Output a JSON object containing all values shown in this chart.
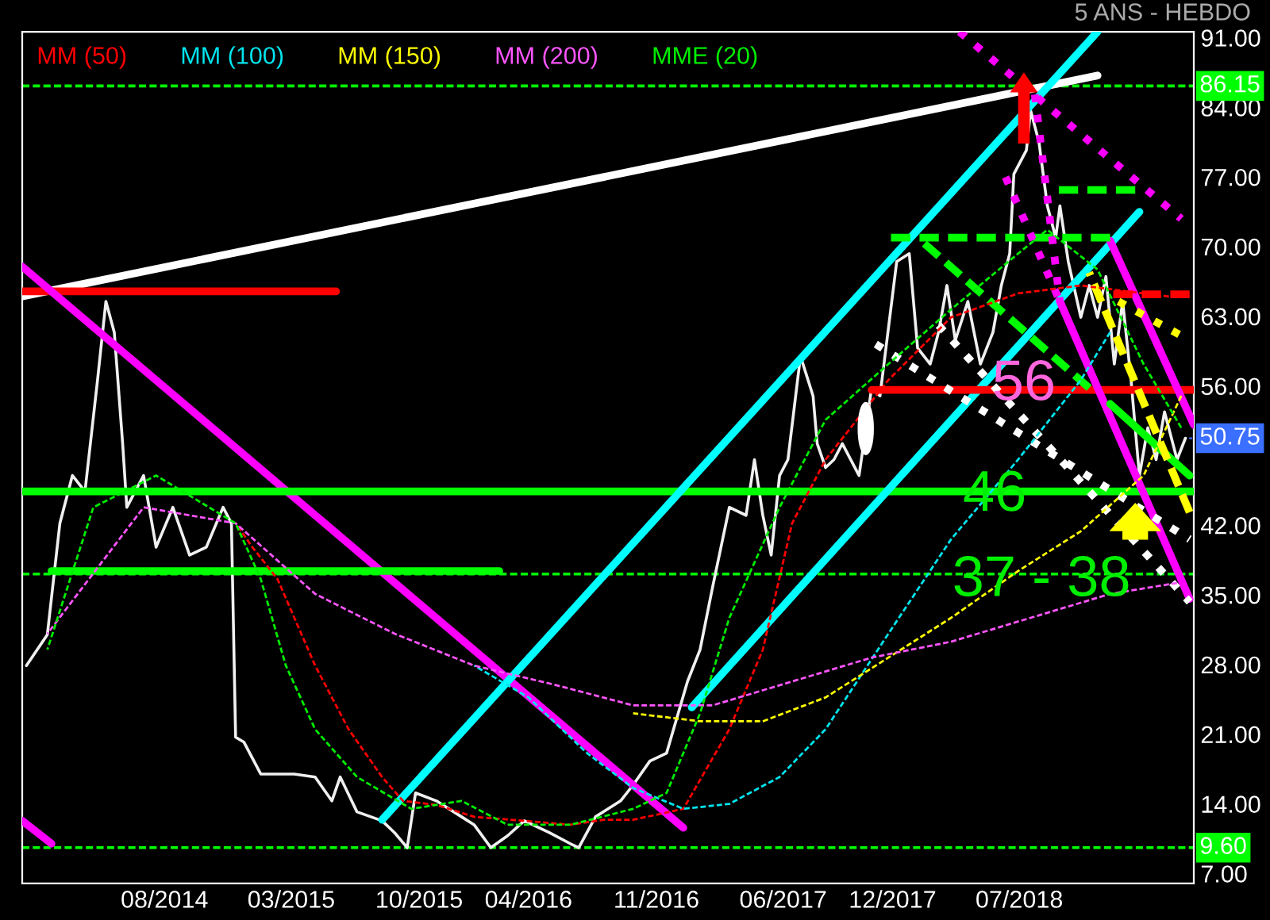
{
  "chart_data": {
    "type": "line",
    "subtitle": "5 ANS - HEBDO",
    "xlim": [
      "2013-12-06",
      "2019-04-19"
    ],
    "ylim": [
      6,
      91.6
    ],
    "xticks": [
      {
        "value": "2014-08-01",
        "label": "08/2014"
      },
      {
        "value": "2015-03-01",
        "label": "03/2015"
      },
      {
        "value": "2015-10-01",
        "label": "10/2015"
      },
      {
        "value": "2016-04-01",
        "label": "04/2016"
      },
      {
        "value": "2016-11-01",
        "label": "11/2016"
      },
      {
        "value": "2017-06-01",
        "label": "06/2017"
      },
      {
        "value": "2017-12-01",
        "label": "12/2017"
      },
      {
        "value": "2018-07-01",
        "label": "07/2018"
      }
    ],
    "yticks": [
      {
        "value": 7,
        "label": "7.00"
      },
      {
        "value": 14,
        "label": "14.00"
      },
      {
        "value": 21,
        "label": "21.00"
      },
      {
        "value": 28,
        "label": "28.00"
      },
      {
        "value": 35,
        "label": "35.00"
      },
      {
        "value": 42,
        "label": "42.00"
      },
      {
        "value": 56,
        "label": "56.00"
      },
      {
        "value": 63,
        "label": "63.00"
      },
      {
        "value": 70,
        "label": "70.00"
      },
      {
        "value": 77,
        "label": "77.00"
      },
      {
        "value": 84,
        "label": "84.00"
      },
      {
        "value": 91,
        "label": "91.00"
      }
    ],
    "grid": false,
    "legend": "top left",
    "series": [
      {
        "color": "#f0f0f0",
        "line_style": "solid",
        "x": [
          "2013-12-13",
          "2014-01-17",
          "2014-02-07",
          "2014-02-28",
          "2014-03-21",
          "2014-04-11",
          "2014-04-25",
          "2014-05-09",
          "2014-05-23",
          "2014-05-30",
          "2014-06-27",
          "2014-07-18",
          "2014-08-15",
          "2014-09-12",
          "2014-10-10",
          "2014-11-07",
          "2014-11-21",
          "2014-11-28",
          "2014-12-12",
          "2015-01-09",
          "2015-03-06",
          "2015-04-10",
          "2015-05-08",
          "2015-05-22",
          "2015-06-19",
          "2015-07-31",
          "2015-08-21",
          "2015-09-11",
          "2015-09-25",
          "2015-10-30",
          "2015-12-11",
          "2016-01-01",
          "2016-01-29",
          "2016-02-26",
          "2016-03-25",
          "2016-05-06",
          "2016-06-10",
          "2016-06-24",
          "2016-07-22",
          "2016-09-02",
          "2016-09-23",
          "2016-10-21",
          "2016-11-18",
          "2016-12-23",
          "2017-01-13",
          "2017-02-03",
          "2017-03-03",
          "2017-03-31",
          "2017-04-14",
          "2017-04-28",
          "2017-05-12",
          "2017-05-26",
          "2017-06-09",
          "2017-06-30",
          "2017-07-21",
          "2017-07-28",
          "2017-08-11",
          "2017-08-25",
          "2017-09-08",
          "2017-10-06",
          "2017-10-27",
          "2017-11-10",
          "2017-12-08",
          "2017-12-29",
          "2018-01-12",
          "2018-02-02",
          "2018-02-16",
          "2018-03-02",
          "2018-03-16",
          "2018-04-06",
          "2018-04-27",
          "2018-05-18",
          "2018-06-01",
          "2018-06-15",
          "2018-06-22",
          "2018-07-13",
          "2018-07-20",
          "2018-08-03",
          "2018-08-17",
          "2018-08-31",
          "2018-09-07",
          "2018-09-21",
          "2018-10-12",
          "2018-10-26",
          "2018-11-09",
          "2018-11-23",
          "2018-12-07",
          "2018-12-21",
          "2019-01-04",
          "2019-01-18",
          "2019-02-01",
          "2019-02-15",
          "2019-03-01",
          "2019-03-22",
          "2019-04-05"
        ],
        "values": [
          27.9,
          31,
          42.2,
          47,
          45.4,
          56.6,
          64.5,
          61.4,
          50.2,
          43.8,
          47,
          39.8,
          43.8,
          39,
          39.8,
          43.8,
          42.2,
          20.7,
          20.2,
          17,
          17,
          16.7,
          14.3,
          16.7,
          13.2,
          12.3,
          11.1,
          9.6,
          15.1,
          14.3,
          12.7,
          11.9,
          9.6,
          10.8,
          12.3,
          11.1,
          10,
          9.6,
          12.7,
          14.3,
          15.9,
          18.3,
          19.1,
          26.3,
          29.5,
          35.8,
          43.8,
          43,
          48.6,
          43,
          39,
          47,
          48.6,
          59,
          55,
          50.2,
          47.8,
          48.6,
          50.2,
          47,
          55.8,
          55,
          68.5,
          69.3,
          59.8,
          58.2,
          61.4,
          66.1,
          60.6,
          64.5,
          58.2,
          61.4,
          66.1,
          69.3,
          77.3,
          79.7,
          83.7,
          80.5,
          74.1,
          70.9,
          74.1,
          68.5,
          62.9,
          66.1,
          62.9,
          67,
          58.2,
          64.5,
          56.6,
          47,
          51.8,
          48.6,
          53.4,
          48.6,
          50.75
        ]
      },
      {
        "name": "MM (50)",
        "color": "#ff0000",
        "line_style": "dashed",
        "x": [
          "2014-11-28",
          "2014-12-26",
          "2015-02-06",
          "2015-04-10",
          "2015-06-05",
          "2015-07-31",
          "2015-09-04",
          "2015-10-30",
          "2016-01-01",
          "2016-03-25",
          "2016-06-10",
          "2016-08-05",
          "2016-09-23",
          "2016-12-16",
          "2017-03-03",
          "2017-04-28",
          "2017-06-16",
          "2017-08-11",
          "2017-11-24",
          "2018-03-09",
          "2018-06-29",
          "2018-10-12",
          "2019-01-25",
          "2019-03-22"
        ],
        "values": [
          42.2,
          39.8,
          36.6,
          27.9,
          21.5,
          16.7,
          14.3,
          13.9,
          12.7,
          12.3,
          11.9,
          12.4,
          12.4,
          13.5,
          21.5,
          29.5,
          42.2,
          48.6,
          56.6,
          62.9,
          65.3,
          66.1,
          65.3,
          64.9
        ]
      },
      {
        "name": "MM (100)",
        "color": "#00e5ee",
        "line_style": "dashed",
        "x": [
          "2016-01-01",
          "2016-04-01",
          "2016-07-08",
          "2016-09-23",
          "2016-12-16",
          "2017-03-03",
          "2017-05-26",
          "2017-08-11",
          "2017-11-24",
          "2018-03-09",
          "2018-06-29",
          "2018-10-12",
          "2018-11-30"
        ],
        "values": [
          27.9,
          24.7,
          19.1,
          15.6,
          13.5,
          14,
          16.7,
          21.5,
          31.1,
          40.6,
          48.6,
          56.6,
          61.4
        ]
      },
      {
        "name": "MM (150)",
        "color": "#ffff00",
        "line_style": "dashed",
        "x": [
          "2016-09-23",
          "2017-01-13",
          "2017-04-28",
          "2017-08-11",
          "2017-11-24",
          "2018-03-09",
          "2018-06-29",
          "2018-10-12",
          "2019-01-25",
          "2019-03-29"
        ],
        "values": [
          23.1,
          22.3,
          22.3,
          24.7,
          28.7,
          32.7,
          37.4,
          41.4,
          47,
          55
        ]
      },
      {
        "name": "MM (200)",
        "color": "#ff55ff",
        "line_style": "dashed",
        "x": [
          "2014-01-17",
          "2014-06-27",
          "2014-11-28",
          "2015-04-10",
          "2015-08-21",
          "2016-01-01",
          "2016-05-13",
          "2016-09-23",
          "2017-02-03",
          "2017-06-16",
          "2017-10-27",
          "2018-03-09",
          "2018-07-20",
          "2018-11-30",
          "2019-03-22"
        ],
        "values": [
          31.1,
          43.8,
          42.2,
          35.1,
          31.1,
          27.9,
          26,
          23.9,
          23.9,
          26.3,
          28.7,
          30.3,
          32.7,
          35.1,
          36.2
        ]
      },
      {
        "name": "MME (20)",
        "color": "#00ee00",
        "line_style": "dashed",
        "x": [
          "2014-01-17",
          "2014-04-04",
          "2014-07-18",
          "2014-11-28",
          "2015-01-09",
          "2015-02-20",
          "2015-04-10",
          "2015-06-19",
          "2015-09-18",
          "2015-12-11",
          "2016-02-26",
          "2016-06-10",
          "2016-09-23",
          "2016-11-18",
          "2017-01-13",
          "2017-03-03",
          "2017-05-26",
          "2017-08-11",
          "2017-11-24",
          "2018-03-09",
          "2018-06-29",
          "2018-08-17",
          "2018-11-09",
          "2019-01-25",
          "2019-03-29"
        ],
        "values": [
          29.5,
          43.8,
          47,
          42.2,
          36.6,
          27.9,
          21.5,
          16.7,
          13.5,
          14.3,
          11.9,
          11.9,
          13.5,
          15.1,
          23.1,
          32.7,
          43.8,
          52.6,
          58.2,
          63.7,
          69.3,
          71.7,
          67.7,
          58.2,
          51.8
        ]
      },
      {
        "color": "#ffffff",
        "line_style": "solid",
        "x": [
          "2013-12-06",
          "2018-11-09"
        ],
        "values": [
          65,
          87.2
        ]
      },
      {
        "color": "#ff0000",
        "line_style": "solid",
        "x": [
          "2013-12-06",
          "2015-05-15"
        ],
        "values": [
          65.5,
          65.5
        ]
      },
      {
        "color": "#ff00ff",
        "line_style": "solid",
        "x": [
          "2013-12-06",
          "2016-12-16"
        ],
        "values": [
          68,
          11.6
        ]
      },
      {
        "color": "#ff00ff",
        "line_style": "solid",
        "x": [
          "2013-12-06",
          "2014-01-24"
        ],
        "values": [
          12.3,
          10
        ]
      },
      {
        "color": "#00ff00",
        "line_style": "solid",
        "x": [
          "2013-12-06",
          "2019-04-19"
        ],
        "values": [
          45.4,
          45.4
        ]
      },
      {
        "color": "#00ff00",
        "line_style": "solid",
        "x": [
          "2014-01-24",
          "2016-02-12"
        ],
        "values": [
          37.4,
          37.4
        ]
      },
      {
        "color": "#00ffff",
        "line_style": "solid",
        "x": [
          "2015-07-31",
          "2018-11-09"
        ],
        "values": [
          12.4,
          91.6
        ]
      },
      {
        "color": "#00ffff",
        "line_style": "solid",
        "x": [
          "2016-12-30",
          "2019-01-18"
        ],
        "values": [
          23.7,
          73.5
        ]
      },
      {
        "color": "#ff0000",
        "line_style": "solid",
        "x": [
          "2017-10-27",
          "2019-04-19"
        ],
        "values": [
          55.6,
          55.6
        ]
      },
      {
        "color": "#ff00ff",
        "line_style": "solid",
        "x": [
          "2018-09-07",
          "2019-04-12"
        ],
        "values": [
          64.5,
          34.6
        ]
      },
      {
        "color": "#ff00ff",
        "line_style": "solid",
        "x": [
          "2018-11-30",
          "2019-04-19"
        ],
        "values": [
          70.6,
          52.1
        ]
      },
      {
        "color": "#00ff00",
        "line_style": "dashed",
        "x": [
          "2018-01-12",
          "2018-10-26"
        ],
        "values": [
          70.9,
          55.8
        ]
      },
      {
        "color": "#00ff00",
        "line_style": "solid",
        "x": [
          "2018-11-30",
          "2019-04-12"
        ],
        "values": [
          54.2,
          47
        ]
      },
      {
        "color": "#ffff00",
        "line_style": "dashed",
        "x": [
          "2018-10-26",
          "2019-04-12"
        ],
        "values": [
          67.4,
          43.3
        ]
      },
      {
        "color": "#00ff00",
        "line_style": "dashed",
        "x": [
          "2017-11-24",
          "2018-11-30"
        ],
        "values": [
          70.9,
          70.9
        ]
      },
      {
        "color": "#00ff00",
        "line_style": "dashed",
        "x": [
          "2018-08-31",
          "2019-01-11"
        ],
        "values": [
          75.7,
          75.7
        ]
      },
      {
        "color": "#ff0000",
        "line_style": "dashed",
        "x": [
          "2018-11-30",
          "2019-04-12"
        ],
        "values": [
          65.2,
          65.2
        ]
      },
      {
        "color": "#ffffff",
        "line_style": "dotted",
        "x": [
          "2017-11-03",
          "2019-04-12"
        ],
        "values": [
          60.2,
          40.6
        ]
      },
      {
        "color": "#ffffff",
        "line_style": "dotted",
        "x": [
          "2018-02-16",
          "2019-04-12"
        ],
        "values": [
          62.1,
          34.3
        ]
      },
      {
        "color": "#ff00ff",
        "line_style": "dotted",
        "x": [
          "2018-03-23",
          "2019-03-29"
        ],
        "values": [
          91.6,
          72.8
        ]
      },
      {
        "color": "#ff00ff",
        "line_style": "dotted",
        "x": [
          "2018-06-08",
          "2018-09-07"
        ],
        "values": [
          77,
          64.5
        ]
      },
      {
        "color": "#ff00ff",
        "line_style": "dotted",
        "x": [
          "2018-07-27",
          "2018-09-07"
        ],
        "values": [
          85.3,
          64.5
        ]
      },
      {
        "color": "#ffff00",
        "line_style": "dotted",
        "x": [
          "2018-12-14",
          "2019-04-12"
        ],
        "values": [
          64.5,
          60.6
        ]
      }
    ],
    "ref_lines": [
      {
        "axis": "y",
        "value": 86.15,
        "label": "86.15",
        "color": "#00ff00",
        "line_style": "dashed"
      },
      {
        "axis": "y",
        "value": 37.1,
        "label": null,
        "color": "#00ff00",
        "line_style": "dashed"
      },
      {
        "axis": "y",
        "value": 9.6,
        "label": "9.60",
        "color": "#00ff00",
        "line_style": "dashed"
      }
    ],
    "annotations": [
      "56",
      "46",
      "37 - 38",
      {
        "text": "50.75",
        "x": "2019-04-05",
        "y": 50.75
      }
    ]
  }
}
